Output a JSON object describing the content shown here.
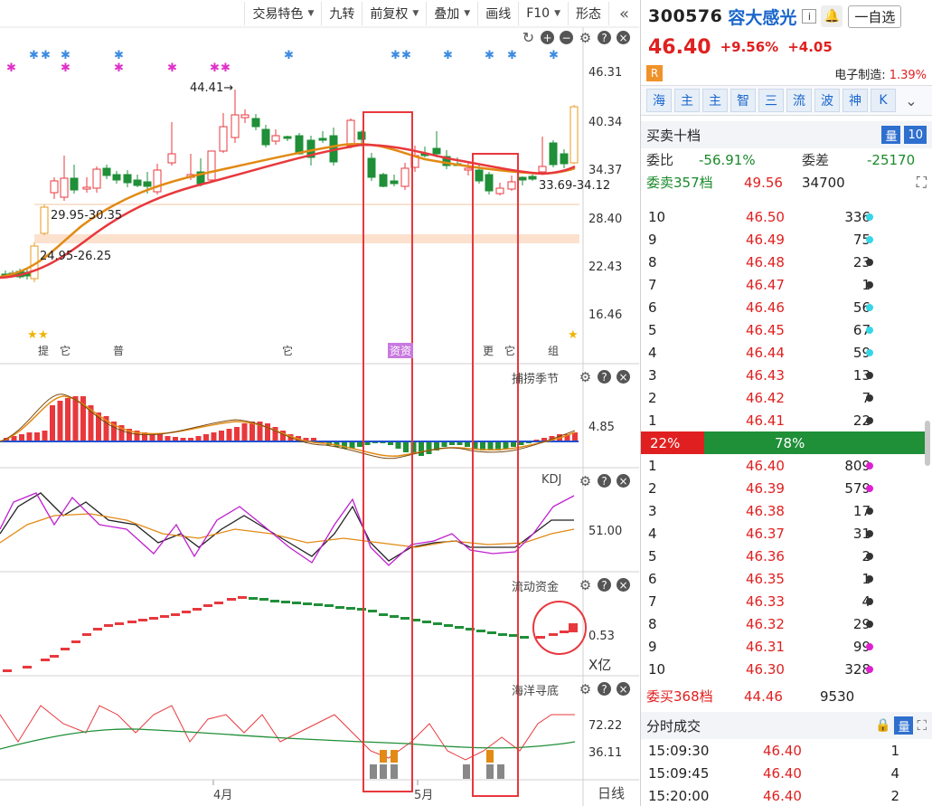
{
  "toolbar": {
    "items": [
      "交易特色",
      "九转",
      "前复权",
      "叠加",
      "画线",
      "F10",
      "形态"
    ],
    "has_caret": [
      true,
      false,
      true,
      true,
      false,
      true,
      false
    ],
    "collapse_icon": "double-chevron-left-icon"
  },
  "main_pane": {
    "price_axis": [
      "46.31",
      "40.34",
      "34.37",
      "28.40",
      "22.43",
      "16.46"
    ],
    "annotations": {
      "high": "44.41→",
      "gap_upper": "29.95-30.35",
      "gap_lower": "24.95-26.25",
      "gap_right": "33.69-34.12"
    },
    "event_markers": [
      "提",
      "它",
      "普",
      "它",
      "资资",
      "更",
      "它",
      "组"
    ]
  },
  "panes": {
    "p2": {
      "title": "捕捞季节",
      "axis": "4.85"
    },
    "p3": {
      "title": "KDJ",
      "axis": "51.00"
    },
    "p4": {
      "title": "流动资金",
      "axis": "0.53",
      "unit": "X亿"
    },
    "p5": {
      "title": "海洋寻底",
      "axis_top": "72.22",
      "axis_bottom": "36.11"
    }
  },
  "x_axis": {
    "labels": [
      "4月",
      "5月"
    ],
    "period": "日线"
  },
  "colors": {
    "up": "#e8383d",
    "down": "#1f8f38",
    "ma_orange": "#e28a14",
    "ma_red": "#e8383d",
    "highlight_box": "#e8383d"
  },
  "quote": {
    "code": "300576",
    "name": "容大感光",
    "watch_label": "一自选",
    "price": "46.40",
    "pct": "+9.56%",
    "chg": "+4.05",
    "r_badge": "R",
    "sector": "电子制造:",
    "sector_pct": "1.39%",
    "tabs": [
      "海",
      "主",
      "主",
      "智",
      "三",
      "流",
      "波",
      "神",
      "K"
    ],
    "orderbook_title": "买卖十档",
    "ob_badge1": "量",
    "ob_badge2": "10",
    "weibi_label": "委比",
    "weibi": "-56.91%",
    "weicha_label": "委差",
    "weicha": "-25170",
    "sell_total_label": "委卖357档",
    "sell_total_price": "49.56",
    "sell_total_vol": "34700",
    "asks": [
      {
        "lvl": "10",
        "px": "46.50",
        "vol": "336",
        "dot": "#36d6e8"
      },
      {
        "lvl": "9",
        "px": "46.49",
        "vol": "75",
        "dot": "#36d6e8"
      },
      {
        "lvl": "8",
        "px": "46.48",
        "vol": "23",
        "dot": "#333333"
      },
      {
        "lvl": "7",
        "px": "46.47",
        "vol": "1",
        "dot": "#333333"
      },
      {
        "lvl": "6",
        "px": "46.46",
        "vol": "56",
        "dot": "#36d6e8"
      },
      {
        "lvl": "5",
        "px": "46.45",
        "vol": "67",
        "dot": "#36d6e8"
      },
      {
        "lvl": "4",
        "px": "46.44",
        "vol": "59",
        "dot": "#36d6e8"
      },
      {
        "lvl": "3",
        "px": "46.43",
        "vol": "13",
        "dot": "#333333"
      },
      {
        "lvl": "2",
        "px": "46.42",
        "vol": "7",
        "dot": "#333333"
      },
      {
        "lvl": "1",
        "px": "46.41",
        "vol": "22",
        "dot": "#333333"
      }
    ],
    "ratio_sell": "22%",
    "ratio_buy": "78%",
    "bids": [
      {
        "lvl": "1",
        "px": "46.40",
        "vol": "809",
        "dot": "#e020d0"
      },
      {
        "lvl": "2",
        "px": "46.39",
        "vol": "579",
        "dot": "#e020d0"
      },
      {
        "lvl": "3",
        "px": "46.38",
        "vol": "17",
        "dot": "#333333"
      },
      {
        "lvl": "4",
        "px": "46.37",
        "vol": "31",
        "dot": "#333333"
      },
      {
        "lvl": "5",
        "px": "46.36",
        "vol": "2",
        "dot": "#333333"
      },
      {
        "lvl": "6",
        "px": "46.35",
        "vol": "1",
        "dot": "#333333"
      },
      {
        "lvl": "7",
        "px": "46.33",
        "vol": "4",
        "dot": "#333333"
      },
      {
        "lvl": "8",
        "px": "46.32",
        "vol": "29",
        "dot": "#333333"
      },
      {
        "lvl": "9",
        "px": "46.31",
        "vol": "99",
        "dot": "#e020d0"
      },
      {
        "lvl": "10",
        "px": "46.30",
        "vol": "328",
        "dot": "#e020d0"
      }
    ],
    "buy_total_label": "委买368档",
    "buy_total_price": "44.46",
    "buy_total_vol": "9530",
    "ticks_title": "分时成交",
    "ticks_badge": "量",
    "ticks": [
      {
        "t": "15:09:30",
        "p": "46.40",
        "v": "1"
      },
      {
        "t": "15:09:45",
        "p": "46.40",
        "v": "4"
      },
      {
        "t": "15:20:00",
        "p": "46.40",
        "v": "2"
      }
    ]
  }
}
